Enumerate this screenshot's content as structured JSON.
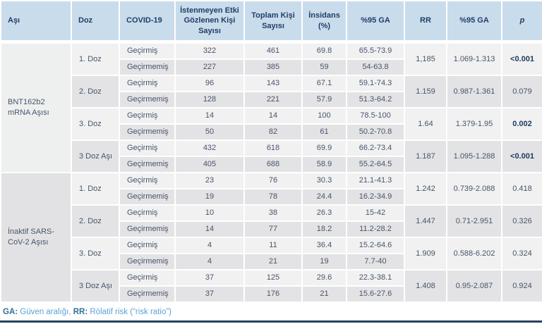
{
  "columns": [
    "Aşı",
    "Doz",
    "COVID-19",
    "İstenmeyen Etki Gözlenen Kişi Sayısı",
    "Toplam Kişi Sayısı",
    "İnsidans (%)",
    "%95 GA",
    "RR",
    "%95 GA",
    "p"
  ],
  "groups": [
    {
      "vaccine": "BNT162b2 mRNA Aşısı",
      "doses": [
        {
          "dose": "1. Doz",
          "rows": [
            {
              "covid": "Geçirmiş",
              "adverse": "322",
              "total": "461",
              "incidence": "69.8",
              "ci": "65.5-73.9"
            },
            {
              "covid": "Geçirmemiş",
              "adverse": "227",
              "total": "385",
              "incidence": "59",
              "ci": "54-63.8"
            }
          ],
          "rr": "1,185",
          "rr_ci": "1.069-1.313",
          "p": "<0.001",
          "p_bold": true
        },
        {
          "dose": "2. Doz",
          "rows": [
            {
              "covid": "Geçirmiş",
              "adverse": "96",
              "total": "143",
              "incidence": "67.1",
              "ci": "59.1-74.3"
            },
            {
              "covid": "Geçirmemiş",
              "adverse": "128",
              "total": "221",
              "incidence": "57.9",
              "ci": "51.3-64.2"
            }
          ],
          "rr": "1.159",
          "rr_ci": "0.987-1.361",
          "p": "0.079",
          "p_bold": false
        },
        {
          "dose": "3. Doz",
          "rows": [
            {
              "covid": "Geçirmiş",
              "adverse": "14",
              "total": "14",
              "incidence": "100",
              "ci": "78.5-100"
            },
            {
              "covid": "Geçirmemiş",
              "adverse": "50",
              "total": "82",
              "incidence": "61",
              "ci": "50.2-70.8"
            }
          ],
          "rr": "1.64",
          "rr_ci": "1.379-1.95",
          "p": "0.002",
          "p_bold": true
        },
        {
          "dose": "3 Doz Aşı",
          "rows": [
            {
              "covid": "Geçirmiş",
              "adverse": "432",
              "total": "618",
              "incidence": "69.9",
              "ci": "66.2-73.4"
            },
            {
              "covid": "Geçirmemiş",
              "adverse": "405",
              "total": "688",
              "incidence": "58.9",
              "ci": "55.2-64.5"
            }
          ],
          "rr": "1.187",
          "rr_ci": "1.095-1.288",
          "p": "<0.001",
          "p_bold": true
        }
      ]
    },
    {
      "vaccine": "İnaktif SARS-CoV-2 Aşısı",
      "doses": [
        {
          "dose": "1. Doz",
          "rows": [
            {
              "covid": "Geçirmiş",
              "adverse": "23",
              "total": "76",
              "incidence": "30.3",
              "ci": "21.1-41.3"
            },
            {
              "covid": "Geçirmemiş",
              "adverse": "19",
              "total": "78",
              "incidence": "24.4",
              "ci": "16.2-34.9"
            }
          ],
          "rr": "1.242",
          "rr_ci": "0.739-2.088",
          "p": "0.418",
          "p_bold": false
        },
        {
          "dose": "2. Doz",
          "rows": [
            {
              "covid": "Geçirmiş",
              "adverse": "10",
              "total": "38",
              "incidence": "26.3",
              "ci": "15-42"
            },
            {
              "covid": "Geçirmemiş",
              "adverse": "14",
              "total": "77",
              "incidence": "18.2",
              "ci": "11.2-28.2"
            }
          ],
          "rr": "1.447",
          "rr_ci": "0.71-2.951",
          "p": "0.326",
          "p_bold": false
        },
        {
          "dose": "3. Doz",
          "rows": [
            {
              "covid": "Geçirmiş",
              "adverse": "4",
              "total": "11",
              "incidence": "36.4",
              "ci": "15.2-64.6"
            },
            {
              "covid": "Geçirmemiş",
              "adverse": "4",
              "total": "21",
              "incidence": "19",
              "ci": "7.7-40"
            }
          ],
          "rr": "1.909",
          "rr_ci": "0.588-6.202",
          "p": "0.324",
          "p_bold": false
        },
        {
          "dose": "3 Doz Aşı",
          "rows": [
            {
              "covid": "Geçirmiş",
              "adverse": "37",
              "total": "125",
              "incidence": "29.6",
              "ci": "22.3-38.1"
            },
            {
              "covid": "Geçirmemiş",
              "adverse": "37",
              "total": "176",
              "incidence": "21",
              "ci": "15.6-27.6"
            }
          ],
          "rr": "1.408",
          "rr_ci": "0.95-2.087",
          "p": "0.924",
          "p_bold": false
        }
      ]
    }
  ],
  "footer": {
    "segments": [
      {
        "text": "GA:",
        "bold": true
      },
      {
        "text": " Güven aralığı, ",
        "bold": false
      },
      {
        "text": "RR:",
        "bold": true
      },
      {
        "text": " Rölatif risk (“risk ratio”)",
        "bold": false
      }
    ]
  },
  "colors": {
    "header_bg": "#c9dcec",
    "header_text": "#203e66",
    "row_light": "#f1f1f2",
    "row_dark": "#e3e3e5",
    "vaccine_cell_light": "#eef0ef",
    "vaccine_cell_dark": "#e2e2e4",
    "body_text": "#47556a",
    "significant_p_text": "#1f3a60",
    "footer_bold": "#2c7295",
    "footer_regular": "#58a3d3",
    "bottom_rule": "#27415f"
  }
}
